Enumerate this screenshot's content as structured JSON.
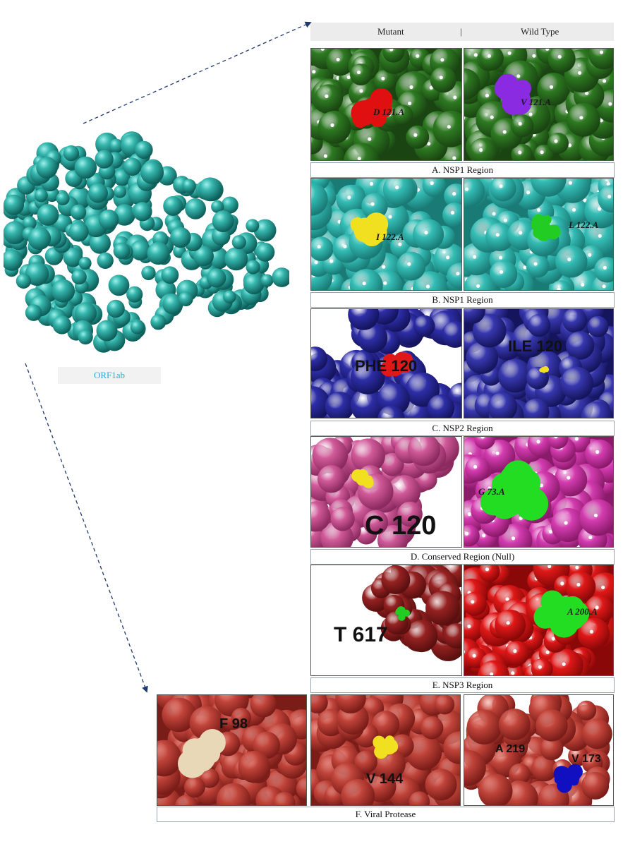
{
  "header": {
    "mutant_label": "Mutant",
    "separator": "|",
    "wildtype_label": "Wild Type"
  },
  "protein_label": "ORF1ab",
  "rows": [
    {
      "caption": "A. NSP1 Region",
      "mutant_residue": "D 121.A",
      "wildtype_residue": "V 121.A",
      "color_scheme": [
        "#2e6b1f",
        "#e01010",
        "#8a2be2"
      ]
    },
    {
      "caption": "B. NSP1 Region",
      "mutant_residue": "I 122.A",
      "wildtype_residue": "L 122.A",
      "color_scheme": [
        "#2fb3ad",
        "#f0e020",
        "#22cc22"
      ]
    },
    {
      "caption": "C. NSP2 Region",
      "mutant_residue": "PHE 120",
      "wildtype_residue": "ILE 120",
      "color_scheme": [
        "#2a2a9a",
        "#e01818",
        "#f0e020"
      ]
    },
    {
      "caption": "D. Conserved Region (Null)",
      "mutant_residue": "C 120",
      "wildtype_residue": "G 73.A",
      "color_scheme": [
        "#c84a8a",
        "#f0e020",
        "#22dd22"
      ]
    },
    {
      "caption": "E. NSP3 Region",
      "mutant_residue": "T 617",
      "wildtype_residue": "A 200.A",
      "color_scheme": [
        "#8a1a1a",
        "#22cc22",
        "#e01010"
      ]
    }
  ],
  "protease": {
    "caption": "F. Viral Protease",
    "residues": [
      "F 98",
      "V 144",
      "A 219",
      "V 173"
    ],
    "color_scheme": [
      "#b53a30",
      "#e8d8b8",
      "#f0e020",
      "#1010c0"
    ]
  }
}
